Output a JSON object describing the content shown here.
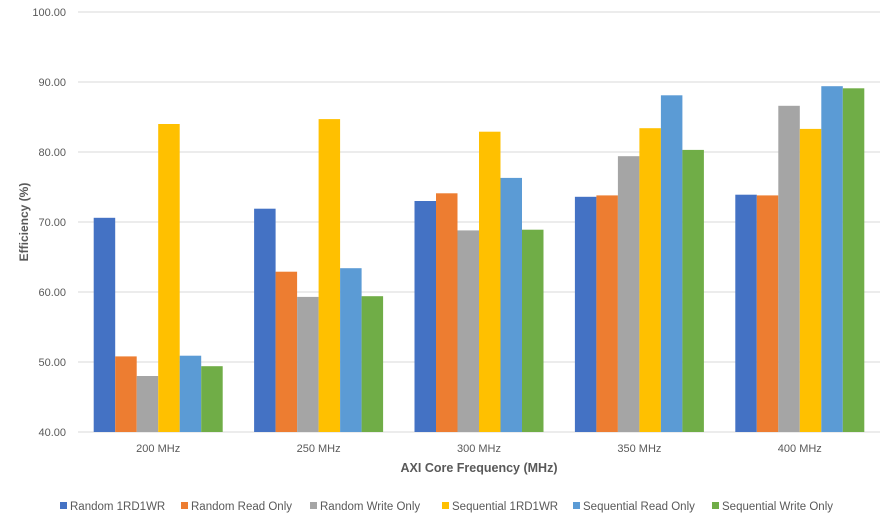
{
  "chart_data": {
    "type": "bar",
    "title": "",
    "xlabel": "AXI Core Frequency (MHz)",
    "ylabel": "Efficiency  (%)",
    "ylim": [
      40,
      100
    ],
    "yticks": [
      "40.00",
      "50.00",
      "60.00",
      "70.00",
      "80.00",
      "90.00",
      "100.00"
    ],
    "ytick_values": [
      40,
      50,
      60,
      70,
      80,
      90,
      100
    ],
    "grid": true,
    "legend_position": "bottom",
    "categories": [
      "200 MHz",
      "250 MHz",
      "300 MHz",
      "350 MHz",
      "400 MHz"
    ],
    "series": [
      {
        "name": "Random 1RD1WR",
        "color": "#4472C4",
        "values": [
          70.6,
          71.9,
          73.0,
          73.6,
          73.9
        ]
      },
      {
        "name": "Random Read Only",
        "color": "#ED7D31",
        "values": [
          50.8,
          62.9,
          74.1,
          73.8,
          73.8
        ]
      },
      {
        "name": "Random Write Only",
        "color": "#A5A5A5",
        "values": [
          48.0,
          59.3,
          68.8,
          79.4,
          86.6
        ]
      },
      {
        "name": "Sequential 1RD1WR",
        "color": "#FFC000",
        "values": [
          84.0,
          84.7,
          82.9,
          83.4,
          83.3
        ]
      },
      {
        "name": "Sequential Read Only",
        "color": "#5B9BD5",
        "values": [
          50.9,
          63.4,
          76.3,
          88.1,
          89.4
        ]
      },
      {
        "name": "Sequential Write Only",
        "color": "#70AD47",
        "values": [
          49.4,
          59.4,
          68.9,
          80.3,
          89.1
        ]
      }
    ]
  }
}
